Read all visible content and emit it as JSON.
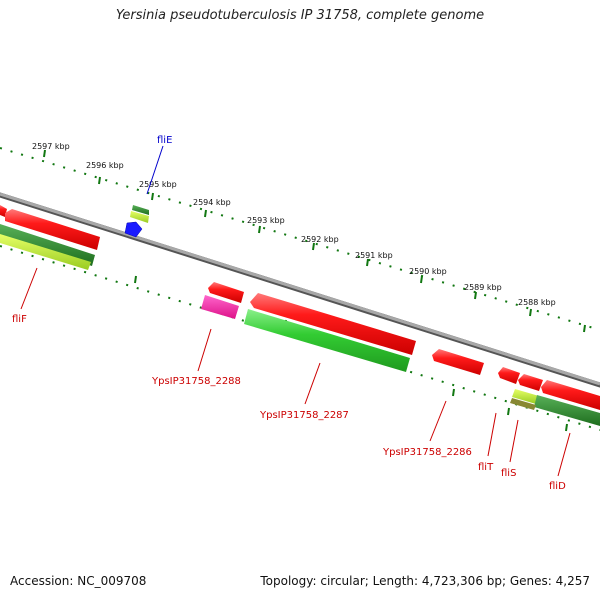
{
  "title": "Yersinia pseudotuberculosis IP 31758, complete genome",
  "accession_label": "Accession: NC_009708",
  "summary_label": "Topology: circular; Length: 4,723,306 bp; Genes: 4,257",
  "kbp_labels": [
    "2597 kbp",
    "2596 kbp",
    "2595 kbp",
    "2594 kbp",
    "2593 kbp",
    "2592 kbp",
    "2591 kbp",
    "2590 kbp",
    "2589 kbp",
    "2588 kbp"
  ],
  "gene_labels": {
    "fliE": "fliE",
    "fliF": "fliF",
    "ypsip2288": "YpsIP31758_2288",
    "ypsip2287": "YpsIP31758_2287",
    "ypsip2286": "YpsIP31758_2286",
    "fliT": "fliT",
    "fliS": "fliS",
    "fliD": "fliD"
  },
  "colors": {
    "backbone": "#808080",
    "cds_red": "#ff0000",
    "cds_green": "#33cc33",
    "cds_dark_green": "#228822",
    "cds_yellow_green": "#aadd22",
    "cds_magenta": "#ee2299",
    "cds_blue": "#0000ff",
    "ticks": "#117711",
    "label_red": "#cc0000",
    "label_blue": "#0000cc"
  }
}
